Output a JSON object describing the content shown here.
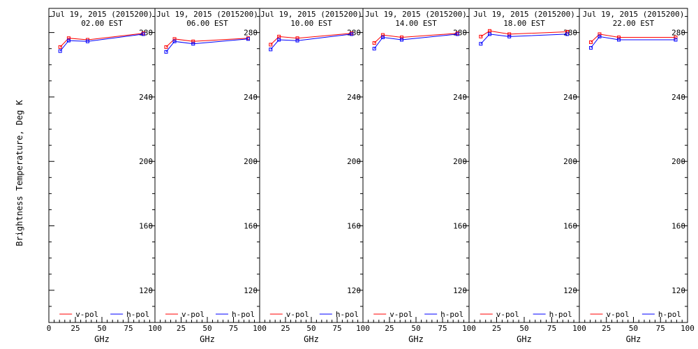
{
  "chart_data": {
    "type": "line",
    "ylabel": "Brightness Temperature, Deg K",
    "xlabel": "GHz",
    "ylim": [
      100,
      295
    ],
    "yticks": [
      120,
      160,
      200,
      240,
      280
    ],
    "grid": false,
    "legend_position": "bottom",
    "series_colors": {
      "v-pol": "#ff0000",
      "h-pol": "#0000ff"
    },
    "x": [
      10.65,
      18.7,
      36.5,
      89.0
    ],
    "panels": [
      {
        "title_line1": "Jul 19, 2015 (2015200)",
        "title_line2": "02.00 EST",
        "xlim": [
          0,
          100
        ],
        "xticks": [
          0,
          25,
          50,
          75,
          100
        ],
        "series": [
          {
            "name": "v-pol",
            "values": [
              271,
              276.5,
              275.5,
              279.5
            ]
          },
          {
            "name": "h-pol",
            "values": [
              268.5,
              275,
              274.5,
              279
            ]
          }
        ]
      },
      {
        "title_line1": "Jul 19, 2015 (2015200)",
        "title_line2": "06.00 EST",
        "xlim": [
          0,
          100
        ],
        "xticks": [
          0,
          25,
          50,
          75,
          100
        ],
        "series": [
          {
            "name": "v-pol",
            "values": [
              271,
              276,
              274.5,
              276.5
            ]
          },
          {
            "name": "h-pol",
            "values": [
              268,
              274.5,
              273,
              276
            ]
          }
        ]
      },
      {
        "title_line1": "Jul 19, 2015 (2015200)",
        "title_line2": "10.00 EST",
        "xlim": [
          0,
          100
        ],
        "xticks": [
          0,
          25,
          50,
          75,
          100
        ],
        "series": [
          {
            "name": "v-pol",
            "values": [
              272.5,
              277.5,
              276.5,
              279.5
            ]
          },
          {
            "name": "h-pol",
            "values": [
              269.5,
              275.5,
              275,
              279
            ]
          }
        ]
      },
      {
        "title_line1": "Jul 19, 2015 (2015200)",
        "title_line2": "14.00 EST",
        "xlim": [
          0,
          100
        ],
        "xticks": [
          0,
          25,
          50,
          75,
          100
        ],
        "series": [
          {
            "name": "v-pol",
            "values": [
              273.5,
              278.5,
              277,
              279.5
            ]
          },
          {
            "name": "h-pol",
            "values": [
              270,
              277,
              275.5,
              279
            ]
          }
        ]
      },
      {
        "title_line1": "Jul 19, 2015 (2015200)",
        "title_line2": "18.00 EST",
        "xlim": [
          0,
          100
        ],
        "xticks": [
          0,
          25,
          50,
          75,
          100
        ],
        "series": [
          {
            "name": "v-pol",
            "values": [
              277.5,
              281,
              279,
              280.5
            ]
          },
          {
            "name": "h-pol",
            "values": [
              273,
              279,
              277.5,
              279
            ]
          }
        ]
      },
      {
        "title_line1": "Jul 19, 2015 (2015200)",
        "title_line2": "22.00 EST",
        "xlim": [
          0,
          100
        ],
        "xticks": [
          0,
          25,
          50,
          75,
          100
        ],
        "series": [
          {
            "name": "v-pol",
            "values": [
              274,
              279,
              277,
              277
            ]
          },
          {
            "name": "h-pol",
            "values": [
              270.5,
              277.5,
              275.5,
              275.5
            ]
          }
        ]
      }
    ]
  }
}
